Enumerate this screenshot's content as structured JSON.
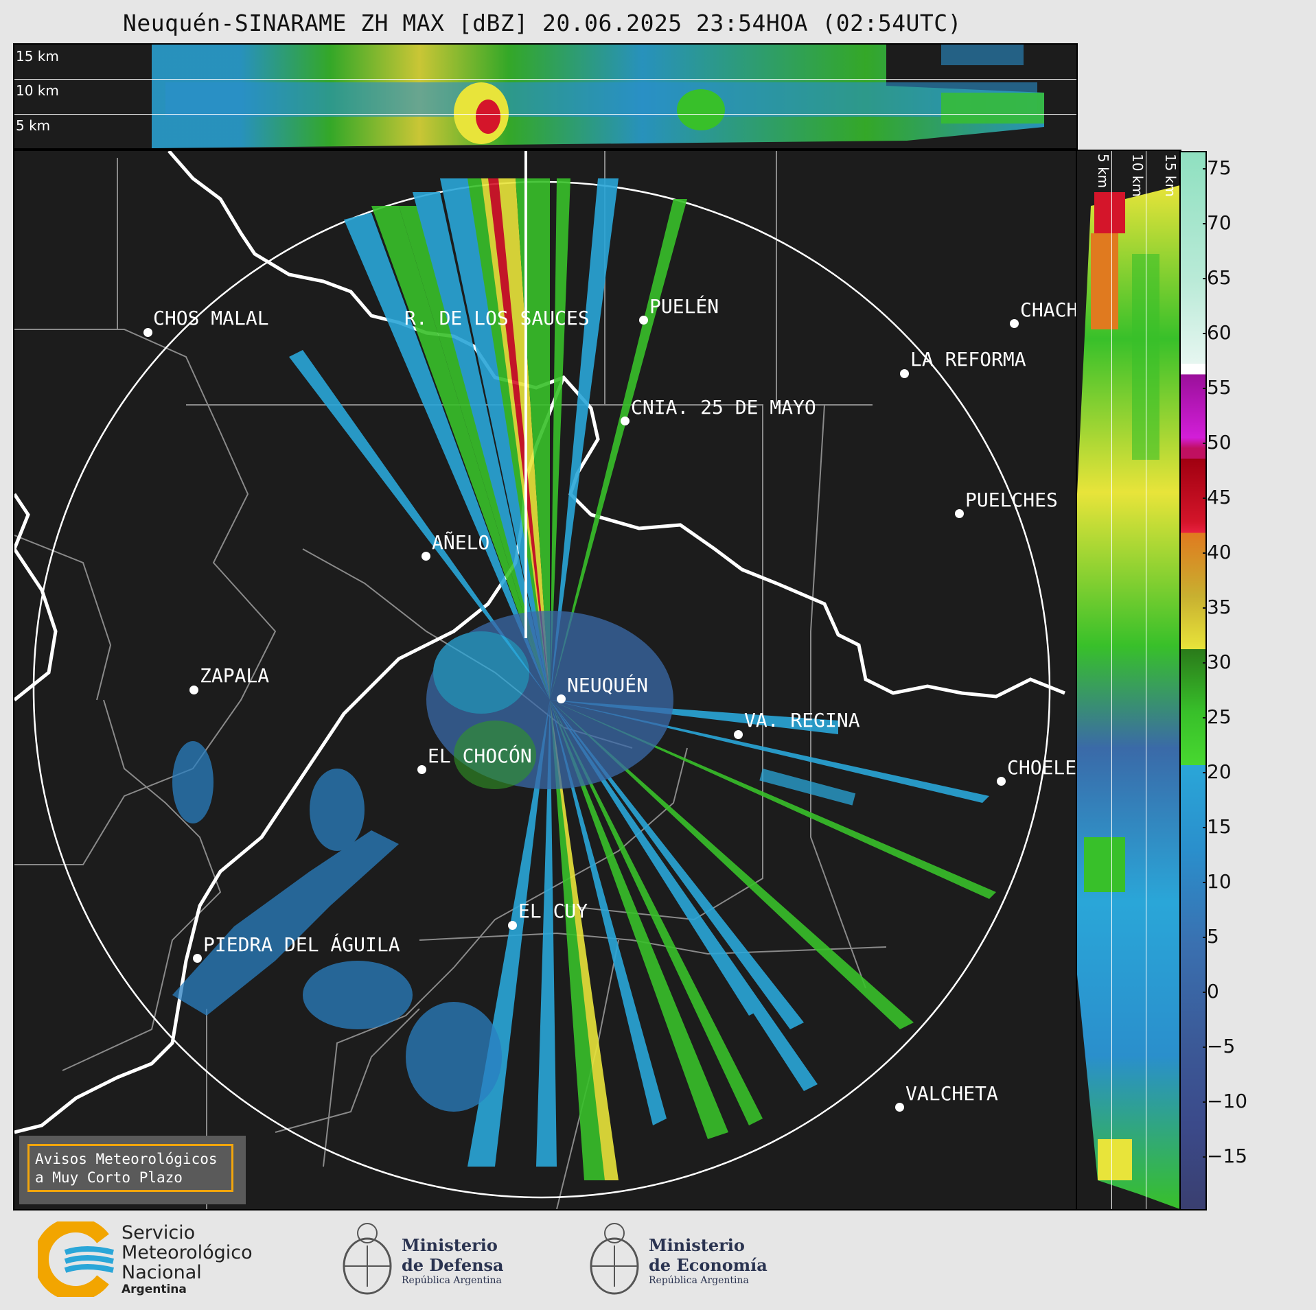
{
  "title": "Neuquén-SINARAME ZH MAX [dBZ] 20.06.2025 23:54HOA (02:54UTC)",
  "top_panel": {
    "height_labels": [
      "15 km",
      "10 km",
      "5 km"
    ]
  },
  "side_panel": {
    "height_labels": [
      "5 km",
      "10 km",
      "15 km"
    ]
  },
  "cities": [
    {
      "id": "chos-malal",
      "name": "CHOS MALAL"
    },
    {
      "id": "rincon-de-los-sauces",
      "name": "R. DE LOS SAUCES"
    },
    {
      "id": "puelen",
      "name": "PUELÉN"
    },
    {
      "id": "chacharramendi",
      "name": "CHACH"
    },
    {
      "id": "la-reforma",
      "name": "LA REFORMA"
    },
    {
      "id": "cnia-25-de-mayo",
      "name": "CNIA. 25 DE MAYO"
    },
    {
      "id": "puelches",
      "name": "PUELCHES"
    },
    {
      "id": "anelo",
      "name": "AÑELO"
    },
    {
      "id": "zapala",
      "name": "ZAPALA"
    },
    {
      "id": "neuquen",
      "name": "NEUQUÉN"
    },
    {
      "id": "va-regina",
      "name": "VA. REGINA"
    },
    {
      "id": "el-chocon",
      "name": "EL CHOCÓN"
    },
    {
      "id": "choele",
      "name": "CHOELE"
    },
    {
      "id": "el-cuy",
      "name": "EL CUY"
    },
    {
      "id": "piedra-del-aguila",
      "name": "PIEDRA DEL ÁGUILA"
    },
    {
      "id": "valcheta",
      "name": "VALCHETA"
    }
  ],
  "colorbar": {
    "ticks": [
      "75",
      "70",
      "65",
      "60",
      "55",
      "50",
      "45",
      "40",
      "35",
      "30",
      "25",
      "20",
      "15",
      "10",
      "5",
      "0",
      "−5",
      "−10",
      "−15"
    ],
    "colors": {
      "low": "#3b4a8a",
      "blue": "#2aa6d8",
      "green": "#38c02a",
      "yellow": "#eeea3a",
      "orange": "#e07a1f",
      "red": "#d4152a",
      "magenta": "#d21ed8",
      "white": "#ffffff",
      "teal": "#8fe0c0"
    }
  },
  "warning": {
    "line1": "Avisos Meteorológicos",
    "line2": "a Muy Corto Plazo"
  },
  "footer": {
    "smn": {
      "line1": "Servicio",
      "line2": "Meteorológico",
      "line3": "Nacional",
      "line4": "Argentina"
    },
    "defensa": {
      "line1": "Ministerio",
      "line2": "de Defensa",
      "line3": "República Argentina"
    },
    "economia": {
      "line1": "Ministerio",
      "line2": "de Economía",
      "line3": "República Argentina"
    }
  }
}
